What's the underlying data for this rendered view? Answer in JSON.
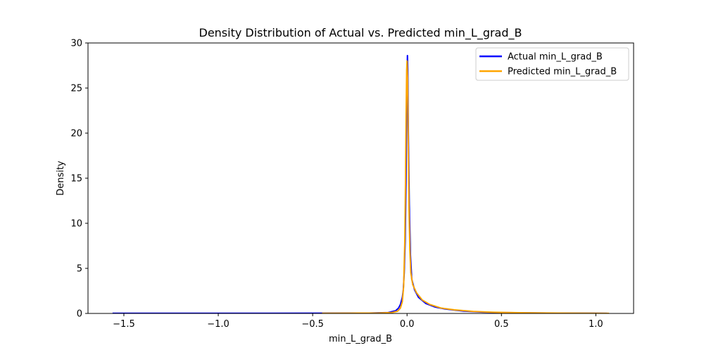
{
  "chart_data": {
    "type": "line",
    "title": "Density Distribution of Actual vs. Predicted min_L_grad_B",
    "xlabel": "min_L_grad_B",
    "ylabel": "Density",
    "xlim": [
      -1.69,
      1.2
    ],
    "ylim": [
      0,
      30
    ],
    "xticks": [
      -1.5,
      -1.0,
      -0.5,
      0.0,
      0.5,
      1.0
    ],
    "xtick_labels": [
      "−1.5",
      "−1.0",
      "−0.5",
      "0.0",
      "0.5",
      "1.0"
    ],
    "yticks": [
      0,
      5,
      10,
      15,
      20,
      25,
      30
    ],
    "ytick_labels": [
      "0",
      "5",
      "10",
      "15",
      "20",
      "25",
      "30"
    ],
    "grid": false,
    "legend_position": "top-right",
    "series": [
      {
        "name": "Actual min_L_grad_B",
        "color": "#0000ff",
        "points": [
          [
            -1.56,
            0.02
          ],
          [
            -1.2,
            0.02
          ],
          [
            -0.8,
            0.02
          ],
          [
            -0.45,
            0.03
          ],
          [
            -0.2,
            0.04
          ],
          [
            -0.1,
            0.1
          ],
          [
            -0.06,
            0.3
          ],
          [
            -0.045,
            0.6
          ],
          [
            -0.035,
            1.0
          ],
          [
            -0.025,
            1.8
          ],
          [
            -0.02,
            2.6
          ],
          [
            -0.015,
            4.5
          ],
          [
            -0.01,
            8.0
          ],
          [
            -0.005,
            15.0
          ],
          [
            -0.002,
            22.0
          ],
          [
            0.0,
            26.5
          ],
          [
            0.002,
            28.6
          ],
          [
            0.004,
            27.0
          ],
          [
            0.007,
            20.0
          ],
          [
            0.012,
            12.0
          ],
          [
            0.018,
            6.5
          ],
          [
            0.025,
            3.8
          ],
          [
            0.04,
            2.6
          ],
          [
            0.06,
            1.8
          ],
          [
            0.1,
            1.1
          ],
          [
            0.15,
            0.7
          ],
          [
            0.2,
            0.5
          ],
          [
            0.3,
            0.25
          ],
          [
            0.4,
            0.15
          ],
          [
            0.5,
            0.1
          ],
          [
            0.6,
            0.07
          ],
          [
            0.8,
            0.03
          ],
          [
            1.0,
            0.02
          ],
          [
            1.06,
            0.01
          ]
        ]
      },
      {
        "name": "Predicted min_L_grad_B",
        "color": "#ffa500",
        "points": [
          [
            -0.45,
            0.02
          ],
          [
            -0.3,
            0.03
          ],
          [
            -0.15,
            0.05
          ],
          [
            -0.08,
            0.1
          ],
          [
            -0.05,
            0.25
          ],
          [
            -0.035,
            0.6
          ],
          [
            -0.025,
            1.3
          ],
          [
            -0.018,
            3.0
          ],
          [
            -0.012,
            8.0
          ],
          [
            -0.008,
            15.0
          ],
          [
            -0.005,
            22.0
          ],
          [
            -0.002,
            27.0
          ],
          [
            0.0,
            28.0
          ],
          [
            0.003,
            26.0
          ],
          [
            0.006,
            20.0
          ],
          [
            0.01,
            12.0
          ],
          [
            0.015,
            7.0
          ],
          [
            0.02,
            4.5
          ],
          [
            0.03,
            3.2
          ],
          [
            0.05,
            2.3
          ],
          [
            0.08,
            1.5
          ],
          [
            0.12,
            1.0
          ],
          [
            0.18,
            0.6
          ],
          [
            0.25,
            0.4
          ],
          [
            0.35,
            0.22
          ],
          [
            0.45,
            0.14
          ],
          [
            0.6,
            0.08
          ],
          [
            0.8,
            0.04
          ],
          [
            1.0,
            0.02
          ],
          [
            1.07,
            0.01
          ]
        ]
      }
    ]
  }
}
